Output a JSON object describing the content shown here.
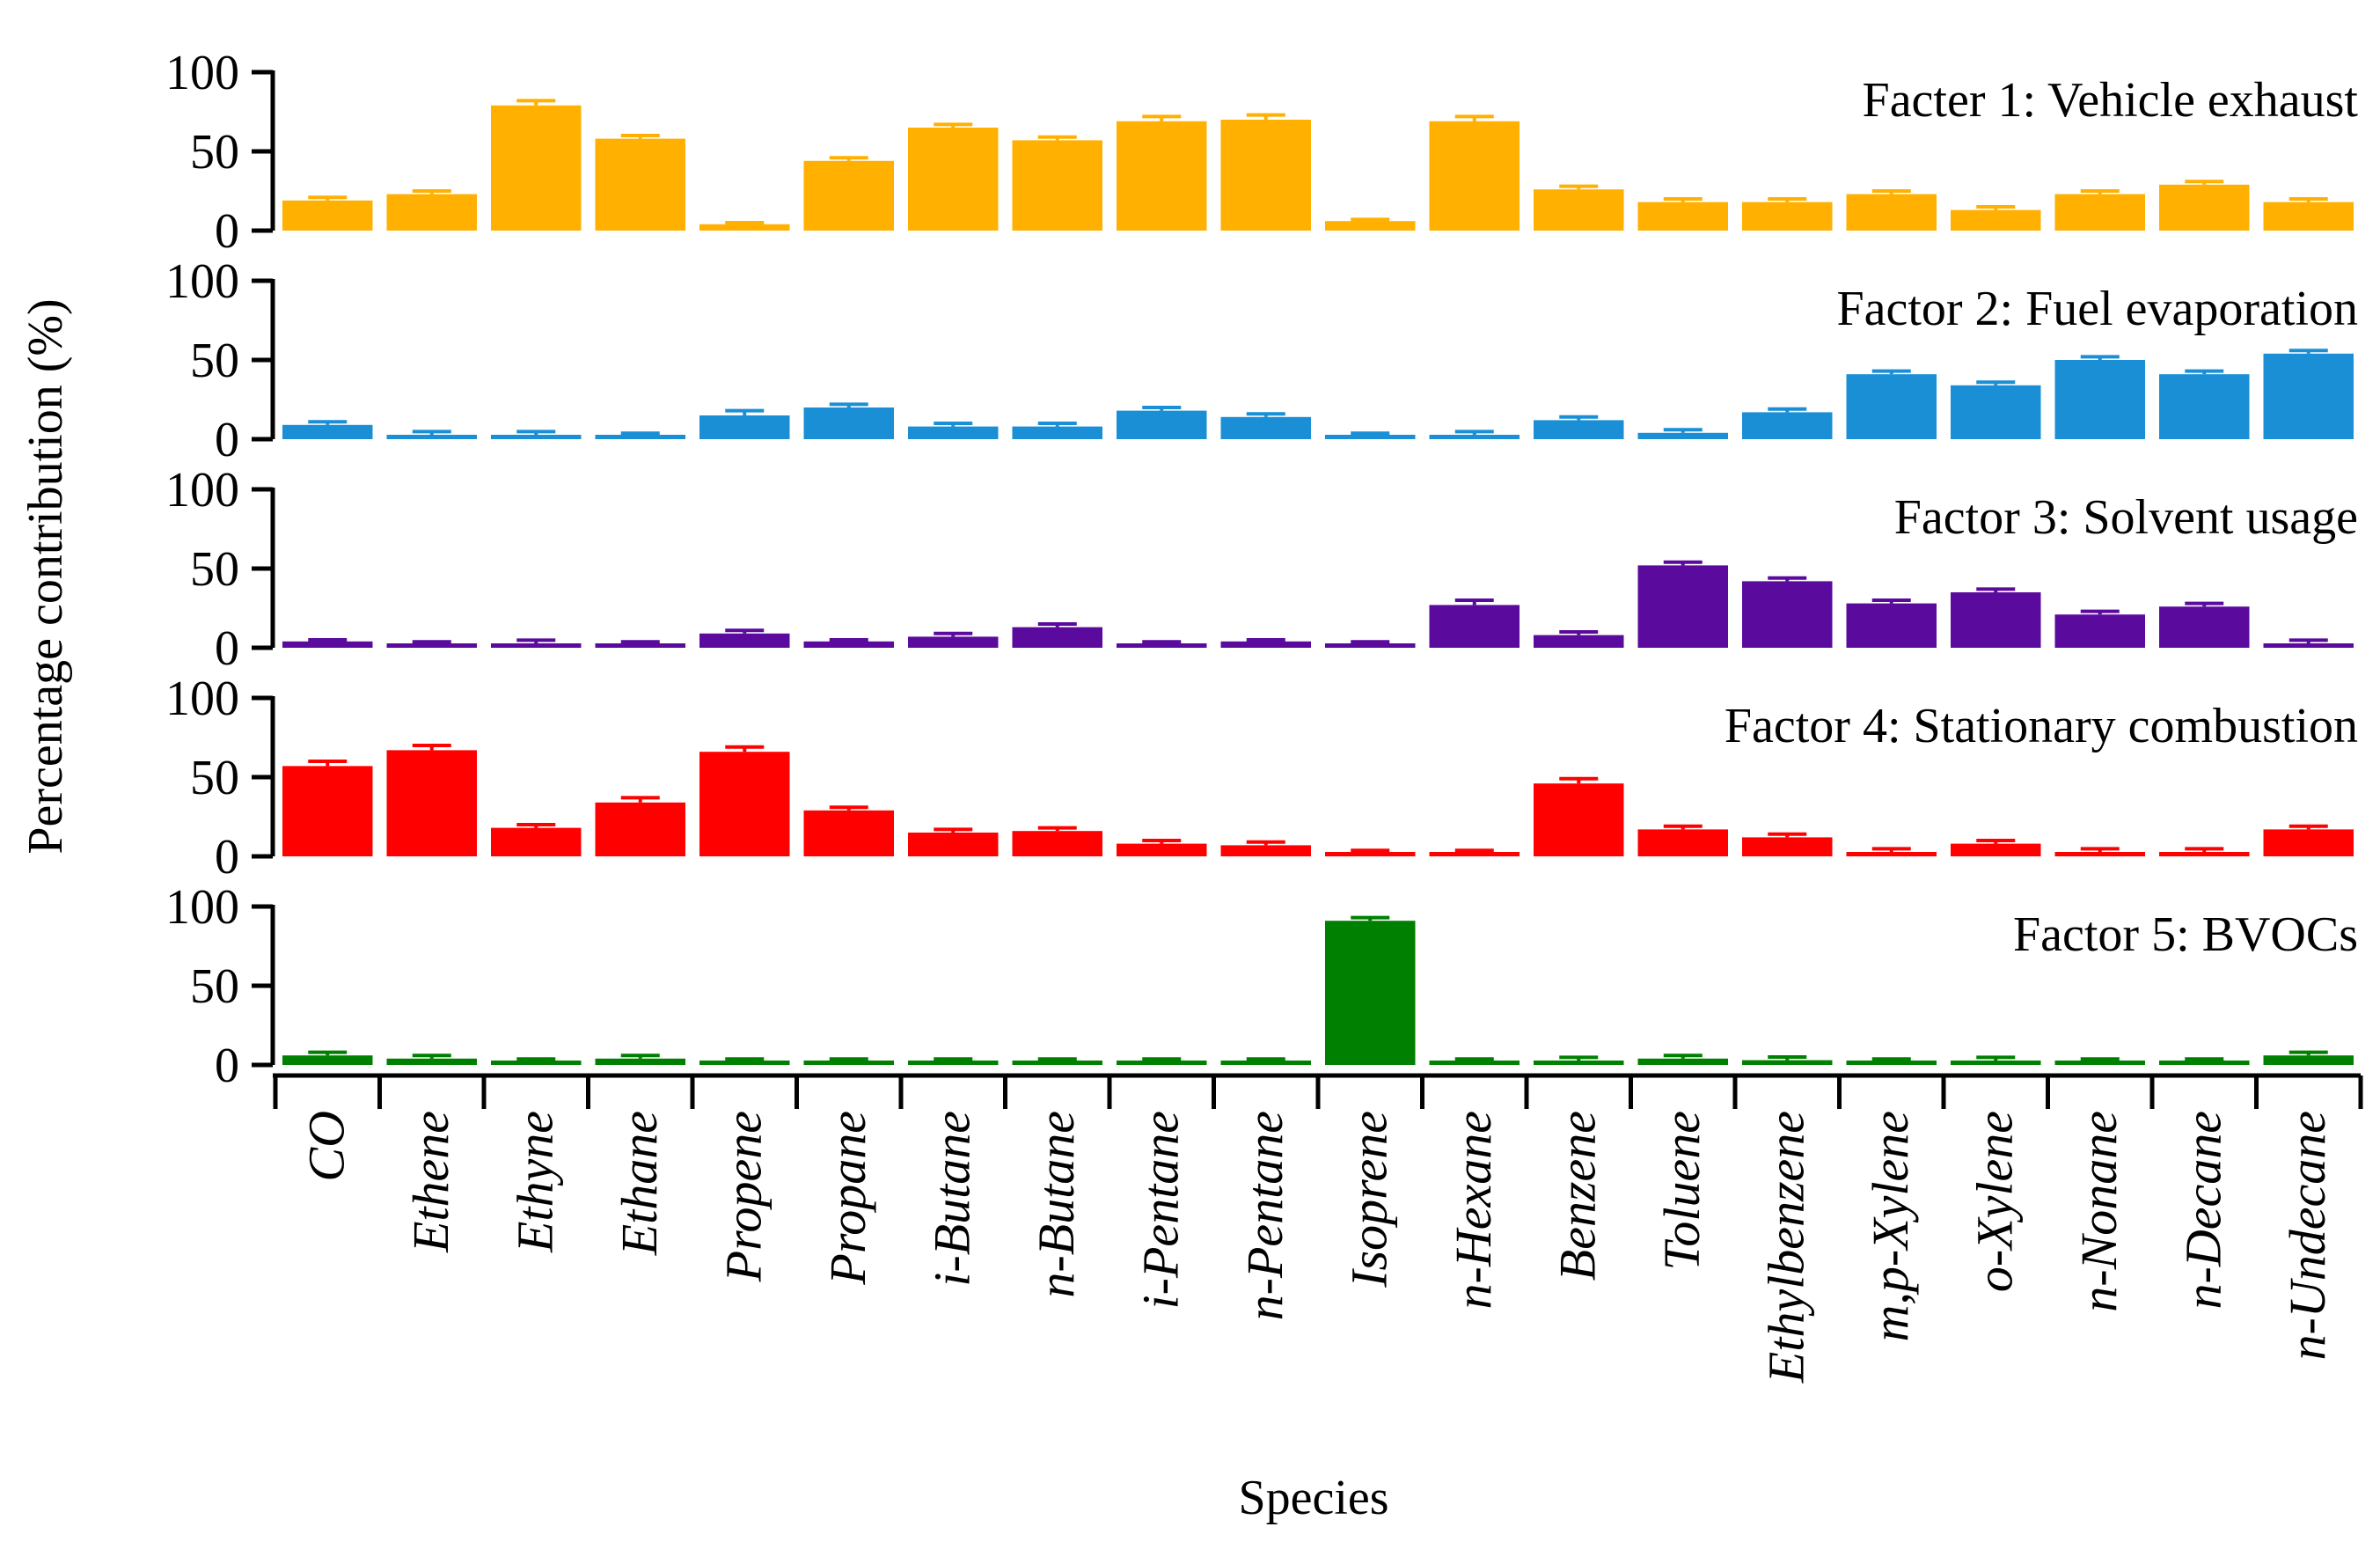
{
  "chart_data": {
    "type": "bar",
    "xlabel": "Species",
    "ylabel": "Percentage contribution (%)",
    "ylim": [
      0,
      100
    ],
    "yticks": [
      0,
      50,
      100
    ],
    "categories": [
      "CO",
      "Ethene",
      "Ethyne",
      "Ethane",
      "Propene",
      "Propane",
      "i-Butane",
      "n-Butane",
      "i-Pentane",
      "n-Pentane",
      "Isoprene",
      "n-Hexane",
      "Benzene",
      "Toluene",
      "Ethylbenzene",
      "m,p-Xylene",
      "o-Xylene",
      "n-Nonane",
      "n-Decane",
      "n-Undecane"
    ],
    "series": [
      {
        "name": "Facter 1: Vehicle exhaust",
        "color": "#FFB000",
        "values": [
          19,
          23,
          79,
          58,
          4,
          44,
          65,
          57,
          69,
          70,
          6,
          69,
          26,
          18,
          18,
          23,
          13,
          23,
          29,
          18
        ],
        "errors": [
          2,
          2,
          3,
          2,
          1,
          2,
          2,
          2,
          3,
          3,
          1,
          3,
          2,
          2,
          2,
          2,
          2,
          2,
          2,
          2
        ]
      },
      {
        "name": "Factor 2: Fuel evaporation",
        "color": "#1A8FD6",
        "values": [
          9,
          0,
          0,
          0,
          15,
          20,
          8,
          8,
          18,
          14,
          0,
          0,
          12,
          4,
          17,
          41,
          34,
          50,
          41,
          54
        ],
        "errors": [
          2,
          2,
          2,
          1,
          3,
          2,
          2,
          2,
          2,
          2,
          1,
          2,
          2,
          2,
          2,
          2,
          2,
          2,
          2,
          2
        ]
      },
      {
        "name": "Factor 3: Solvent usage",
        "color": "#5B0A9E",
        "values": [
          4,
          1,
          0,
          0,
          9,
          4,
          7,
          13,
          0,
          4,
          0,
          27,
          8,
          52,
          42,
          28,
          35,
          21,
          26,
          0
        ],
        "errors": [
          1,
          1,
          2,
          1,
          2,
          1,
          2,
          2,
          1,
          1,
          1,
          3,
          2,
          2,
          2,
          2,
          2,
          2,
          2,
          2
        ]
      },
      {
        "name": "Factor 4: Stationary combustion",
        "color": "#FF0000",
        "values": [
          57,
          67,
          18,
          34,
          66,
          29,
          15,
          16,
          8,
          7,
          0,
          0,
          46,
          17,
          12,
          2,
          8,
          0,
          0,
          17
        ],
        "errors": [
          3,
          3,
          2,
          3,
          3,
          2,
          2,
          2,
          2,
          2,
          1,
          1,
          3,
          2,
          2,
          2,
          2,
          2,
          2,
          2
        ]
      },
      {
        "name": "Factor 5: BVOCs",
        "color": "#008000",
        "values": [
          6,
          4,
          0,
          4,
          0,
          0,
          0,
          0,
          0,
          0,
          91,
          1,
          2,
          4,
          3,
          0,
          2,
          0,
          0,
          6
        ],
        "errors": [
          2,
          2,
          1,
          2,
          1,
          1,
          1,
          1,
          1,
          1,
          2,
          1,
          2,
          2,
          2,
          1,
          2,
          1,
          1,
          2
        ]
      }
    ]
  }
}
